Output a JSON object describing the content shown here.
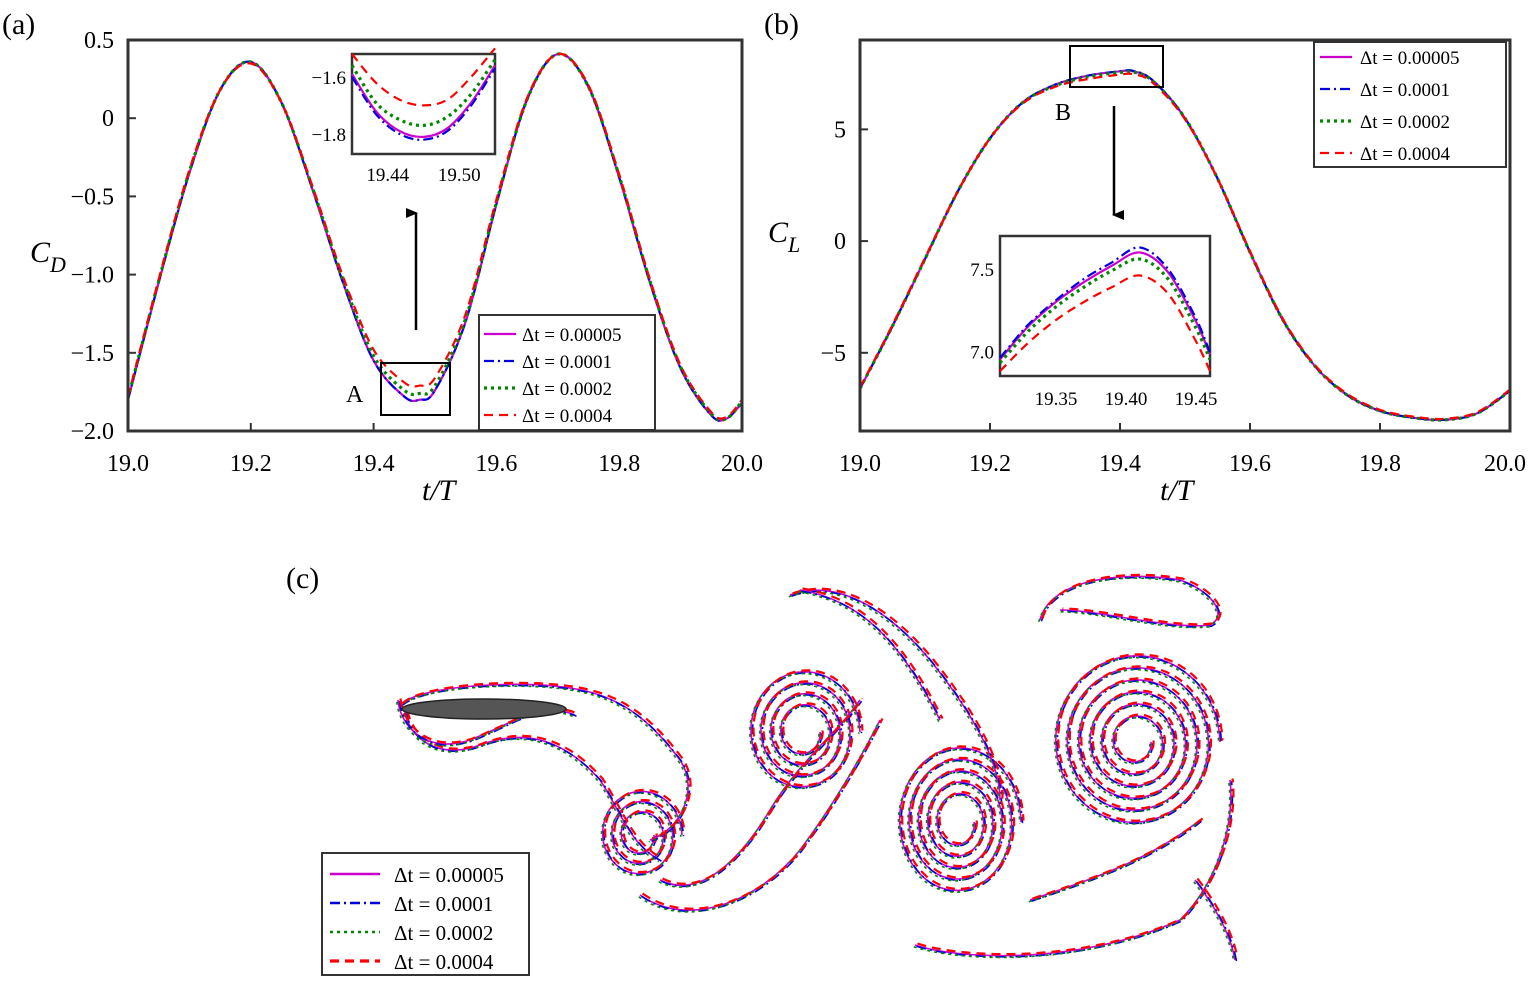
{
  "colors": {
    "s1": "#cc00cc",
    "s2": "#0000dd",
    "s3": "#008800",
    "s4": "#ff0000",
    "body_fill": "#555555"
  },
  "legend": [
    "Δt = 0.00005",
    "Δt = 0.0001",
    "Δt = 0.0002",
    "Δt = 0.0004"
  ],
  "panel_labels": {
    "a": "(a)",
    "b": "(b)",
    "c": "(c)"
  },
  "markers": {
    "A": "A",
    "B": "B"
  },
  "chart_data": [
    {
      "id": "a",
      "type": "line",
      "ylabel_main": "C",
      "ylabel_sub": "D",
      "xlabel": "t/T",
      "xlim": [
        19.0,
        20.0
      ],
      "ylim": [
        -2.0,
        0.5
      ],
      "xticks": [
        "19.0",
        "19.2",
        "19.4",
        "19.6",
        "19.8",
        "20.0"
      ],
      "yticks": [
        "0.5",
        "0",
        "−0.5",
        "−1.0",
        "−1.5",
        "−2.0"
      ],
      "x": [
        19.0,
        19.05,
        19.1,
        19.15,
        19.2,
        19.25,
        19.3,
        19.35,
        19.4,
        19.45,
        19.475,
        19.5,
        19.55,
        19.6,
        19.65,
        19.7,
        19.75,
        19.8,
        19.85,
        19.9,
        19.95,
        19.975,
        20.0
      ],
      "series": [
        {
          "name": "Δt = 0.00005",
          "values": [
            -1.8,
            -1.05,
            -0.35,
            0.18,
            0.36,
            0.1,
            -0.45,
            -1.05,
            -1.55,
            -1.78,
            -1.8,
            -1.74,
            -1.3,
            -0.55,
            0.12,
            0.41,
            0.2,
            -0.38,
            -1.05,
            -1.6,
            -1.9,
            -1.92,
            -1.82
          ]
        },
        {
          "name": "Δt = 0.0001",
          "values": [
            -1.8,
            -1.05,
            -0.35,
            0.18,
            0.36,
            0.1,
            -0.45,
            -1.05,
            -1.55,
            -1.78,
            -1.8,
            -1.74,
            -1.3,
            -0.55,
            0.12,
            0.41,
            0.2,
            -0.38,
            -1.05,
            -1.6,
            -1.9,
            -1.92,
            -1.82
          ]
        },
        {
          "name": "Δt = 0.0002",
          "values": [
            -1.79,
            -1.04,
            -0.34,
            0.18,
            0.36,
            0.1,
            -0.44,
            -1.03,
            -1.52,
            -1.74,
            -1.76,
            -1.71,
            -1.28,
            -0.54,
            0.12,
            0.41,
            0.2,
            -0.37,
            -1.04,
            -1.59,
            -1.89,
            -1.92,
            -1.81
          ]
        },
        {
          "name": "Δt = 0.0004",
          "values": [
            -1.78,
            -1.03,
            -0.33,
            0.18,
            0.35,
            0.1,
            -0.43,
            -1.01,
            -1.48,
            -1.69,
            -1.71,
            -1.66,
            -1.25,
            -0.52,
            0.13,
            0.41,
            0.21,
            -0.36,
            -1.03,
            -1.58,
            -1.88,
            -1.91,
            -1.8
          ]
        }
      ],
      "inset": {
        "xlim": [
          19.41,
          19.53
        ],
        "ylim": [
          -1.87,
          -1.52
        ],
        "xticks": [
          "19.44",
          "19.50"
        ],
        "yticks": [
          "−1.6",
          "−1.8"
        ],
        "x": [
          19.41,
          19.43,
          19.45,
          19.47,
          19.49,
          19.51,
          19.53
        ],
        "series": [
          {
            "name": "Δt = 0.00005",
            "values": [
              -1.59,
              -1.72,
              -1.79,
              -1.81,
              -1.78,
              -1.69,
              -1.56
            ]
          },
          {
            "name": "Δt = 0.0001",
            "values": [
              -1.6,
              -1.73,
              -1.8,
              -1.82,
              -1.79,
              -1.7,
              -1.57
            ]
          },
          {
            "name": "Δt = 0.0002",
            "values": [
              -1.56,
              -1.69,
              -1.75,
              -1.77,
              -1.74,
              -1.66,
              -1.54
            ]
          },
          {
            "name": "Δt = 0.0004",
            "values": [
              -1.52,
              -1.62,
              -1.68,
              -1.7,
              -1.68,
              -1.6,
              -1.5
            ]
          }
        ]
      }
    },
    {
      "id": "b",
      "type": "line",
      "ylabel_main": "C",
      "ylabel_sub": "L",
      "xlabel": "t/T",
      "xlim": [
        19.0,
        20.0
      ],
      "ylim": [
        -8.5,
        9.0
      ],
      "xticks": [
        "19.0",
        "19.2",
        "19.4",
        "19.6",
        "19.8",
        "20.0"
      ],
      "yticks": [
        "5",
        "0",
        "−5"
      ],
      "x": [
        19.0,
        19.05,
        19.1,
        19.15,
        19.2,
        19.25,
        19.3,
        19.35,
        19.4,
        19.42,
        19.45,
        19.5,
        19.55,
        19.6,
        19.65,
        19.7,
        19.75,
        19.8,
        19.85,
        19.9,
        19.95,
        20.0
      ],
      "series": [
        {
          "name": "Δt = 0.00005",
          "values": [
            -6.6,
            -3.8,
            -0.8,
            2.2,
            4.6,
            6.2,
            7.0,
            7.4,
            7.6,
            7.6,
            7.2,
            5.5,
            2.8,
            -0.5,
            -3.5,
            -5.6,
            -6.9,
            -7.6,
            -7.9,
            -8.0,
            -7.7,
            -6.7
          ]
        },
        {
          "name": "Δt = 0.0001",
          "values": [
            -6.6,
            -3.8,
            -0.8,
            2.2,
            4.6,
            6.2,
            7.0,
            7.4,
            7.6,
            7.62,
            7.2,
            5.5,
            2.8,
            -0.5,
            -3.5,
            -5.6,
            -6.9,
            -7.6,
            -7.9,
            -8.0,
            -7.7,
            -6.7
          ]
        },
        {
          "name": "Δt = 0.0002",
          "values": [
            -6.6,
            -3.8,
            -0.8,
            2.2,
            4.6,
            6.2,
            6.95,
            7.35,
            7.55,
            7.57,
            7.18,
            5.5,
            2.8,
            -0.5,
            -3.5,
            -5.6,
            -6.9,
            -7.6,
            -7.9,
            -8.0,
            -7.7,
            -6.7
          ]
        },
        {
          "name": "Δt = 0.0004",
          "values": [
            -6.55,
            -3.75,
            -0.75,
            2.2,
            4.6,
            6.15,
            6.9,
            7.25,
            7.45,
            7.47,
            7.1,
            5.45,
            2.8,
            -0.45,
            -3.45,
            -5.55,
            -6.85,
            -7.55,
            -7.85,
            -7.95,
            -7.65,
            -6.65
          ]
        }
      ],
      "inset": {
        "xlim": [
          19.31,
          19.46
        ],
        "ylim": [
          6.85,
          7.7
        ],
        "xticks": [
          "19.35",
          "19.40",
          "19.45"
        ],
        "yticks": [
          "7.5",
          "7.0"
        ],
        "x": [
          19.31,
          19.33,
          19.35,
          19.37,
          19.39,
          19.41,
          19.43,
          19.45,
          19.46
        ],
        "series": [
          {
            "name": "Δt = 0.00005",
            "values": [
              6.95,
              7.15,
              7.3,
              7.42,
              7.52,
              7.6,
              7.48,
              7.18,
              6.98
            ]
          },
          {
            "name": "Δt = 0.0001",
            "values": [
              6.96,
              7.16,
              7.31,
              7.44,
              7.54,
              7.63,
              7.5,
              7.2,
              6.99
            ]
          },
          {
            "name": "Δt = 0.0002",
            "values": [
              6.93,
              7.12,
              7.27,
              7.39,
              7.49,
              7.56,
              7.44,
              7.14,
              6.95
            ]
          },
          {
            "name": "Δt = 0.0004",
            "values": [
              6.88,
              7.05,
              7.19,
              7.3,
              7.39,
              7.46,
              7.35,
              7.06,
              6.88
            ]
          }
        ]
      }
    }
  ]
}
